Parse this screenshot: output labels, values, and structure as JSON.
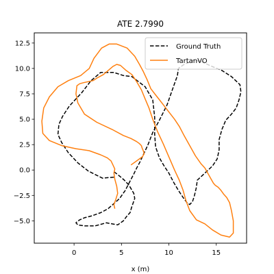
{
  "chart_data": {
    "type": "line",
    "title": "ATE 2.7990",
    "xlabel": "x (m)",
    "ylabel": "",
    "xlim": [
      -4.2,
      18.2
    ],
    "ylim": [
      -7.2,
      13.5
    ],
    "xticks": [
      0,
      5,
      10,
      15
    ],
    "yticks": [
      -5.0,
      -2.5,
      0.0,
      2.5,
      5.0,
      7.5,
      10.0,
      12.5
    ],
    "xtick_labels": [
      "0",
      "5",
      "10",
      "15"
    ],
    "ytick_labels": [
      "−5.0",
      "−2.5",
      "0.0",
      "2.5",
      "5.0",
      "7.5",
      "10.0",
      "12.5"
    ],
    "grid": false,
    "legend_position": "top-right",
    "series": [
      {
        "name": "Ground Truth",
        "color": "#000000",
        "linestyle": "dashed",
        "x": [
          4.2,
          3.0,
          1.5,
          0.4,
          -0.6,
          -1.3,
          -1.7,
          -1.6,
          -1.2,
          -0.5,
          0.8,
          1.8,
          2.8,
          4.2,
          5.2,
          6.1,
          7.5,
          8.3,
          8.5,
          8.5,
          8.6,
          9.0,
          9.5,
          10.0,
          10.5,
          11.0,
          11.5,
          11.9,
          12.2,
          12.5,
          12.7,
          12.9,
          13.0,
          13.8,
          14.6,
          15.1,
          15.3,
          15.3,
          15.6,
          16.0,
          16.6,
          17.1,
          17.4,
          17.6,
          17.5,
          16.6,
          15.6,
          14.3,
          13.4,
          12.6,
          11.6,
          11.0,
          10.9,
          10.4,
          9.8,
          9.0,
          8.3,
          7.8,
          7.3,
          6.9,
          6.6,
          6.3,
          5.9,
          5.4,
          4.8,
          4.2,
          3.6,
          2.8,
          1.9,
          1.1,
          0.6,
          0.3,
          0.2,
          0.4,
          1.1,
          2.2,
          3.4,
          4.0,
          4.6,
          5.2,
          5.6,
          5.9,
          6.1,
          6.4,
          6.3,
          5.8,
          5.3,
          4.8,
          4.4,
          4.1
        ],
        "y": [
          -0.7,
          -0.8,
          -0.1,
          0.7,
          1.7,
          2.7,
          3.5,
          4.5,
          5.3,
          6.3,
          7.6,
          8.8,
          9.6,
          9.6,
          9.3,
          9.2,
          8.2,
          6.9,
          5.2,
          3.5,
          2.3,
          1.2,
          0.4,
          -0.3,
          -1.2,
          -2.0,
          -2.7,
          -3.2,
          -3.4,
          -3.1,
          -2.5,
          -1.7,
          -1.0,
          -0.3,
          0.4,
          1.1,
          2.0,
          3.0,
          4.0,
          4.9,
          5.5,
          6.1,
          6.9,
          7.7,
          8.4,
          9.2,
          9.8,
          10.3,
          10.7,
          10.8,
          10.4,
          10.0,
          9.3,
          8.0,
          6.4,
          4.9,
          3.7,
          2.5,
          1.5,
          0.7,
          0.2,
          -0.4,
          -1.1,
          -2.0,
          -2.8,
          -3.3,
          -3.8,
          -4.2,
          -4.5,
          -4.7,
          -4.9,
          -5.1,
          -5.2,
          -5.4,
          -5.5,
          -5.5,
          -5.2,
          -5.3,
          -5.4,
          -5.0,
          -4.5,
          -4.2,
          -3.6,
          -2.8,
          -2.3,
          -1.5,
          -1.0,
          -0.6,
          -0.3,
          -0.1
        ]
      },
      {
        "name": "TartanVO",
        "color": "#ff7f0e",
        "linestyle": "solid",
        "x": [
          4.3,
          4.2,
          4.4,
          4.6,
          4.5,
          4.3,
          4.2,
          4.3,
          4.1,
          3.9,
          3.5,
          2.8,
          1.6,
          0.2,
          -1.3,
          -2.6,
          -3.3,
          -3.4,
          -3.2,
          -2.6,
          -1.7,
          -0.6,
          0.7,
          1.6,
          2.1,
          2.9,
          3.7,
          4.5,
          5.6,
          6.4,
          6.9,
          7.3,
          7.7,
          8.1,
          8.6,
          9.1,
          9.6,
          10.1,
          10.6,
          11.1,
          11.6,
          12.2,
          12.8,
          13.4,
          13.8,
          14.1,
          14.4,
          14.7,
          14.9,
          15.2,
          15.5,
          15.8,
          16.1,
          16.4,
          16.6,
          16.8,
          16.8,
          16.4,
          15.5,
          14.6,
          13.8,
          12.9,
          12.2,
          11.8,
          11.5,
          11.1,
          10.6,
          10.0,
          9.4,
          8.8,
          8.3,
          7.9,
          7.5,
          7.1,
          6.6,
          6.1,
          5.5,
          4.9,
          4.5,
          4.1,
          3.6,
          3.1,
          2.5,
          2.0,
          1.5,
          1.0,
          0.6,
          0.3,
          0.2,
          0.4,
          1.1,
          2.4,
          4.0,
          5.2,
          6.0,
          6.6,
          6.9,
          7.1,
          7.2,
          7.3,
          7.4,
          7.2,
          6.6,
          6.0
        ],
        "y": [
          -3.8,
          -3.4,
          -2.9,
          -2.3,
          -1.6,
          -0.9,
          -0.3,
          0.1,
          0.5,
          0.9,
          1.2,
          1.5,
          1.9,
          2.1,
          2.4,
          2.9,
          3.6,
          4.8,
          6.1,
          7.2,
          8.2,
          8.8,
          9.3,
          10.0,
          11.0,
          12.0,
          12.4,
          12.4,
          12.0,
          11.2,
          10.4,
          9.7,
          8.9,
          8.0,
          7.4,
          6.8,
          6.2,
          5.6,
          5.0,
          4.3,
          3.4,
          2.4,
          1.4,
          0.6,
          0.2,
          -0.3,
          -0.8,
          -1.3,
          -1.5,
          -1.7,
          -2.0,
          -2.4,
          -2.7,
          -3.2,
          -4.0,
          -5.0,
          -6.2,
          -6.6,
          -6.4,
          -5.9,
          -5.3,
          -4.9,
          -4.0,
          -3.0,
          -2.0,
          -1.0,
          0.0,
          1.3,
          2.6,
          3.8,
          5.0,
          6.1,
          7.0,
          7.9,
          8.7,
          9.4,
          9.8,
          10.3,
          10.4,
          10.2,
          9.8,
          9.4,
          9.1,
          8.8,
          8.7,
          8.6,
          8.5,
          8.3,
          7.5,
          6.6,
          5.5,
          4.7,
          4.0,
          3.4,
          3.1,
          2.8,
          2.6,
          2.4,
          2.1,
          1.9,
          1.6,
          1.3,
          0.9,
          0.5
        ]
      }
    ]
  }
}
